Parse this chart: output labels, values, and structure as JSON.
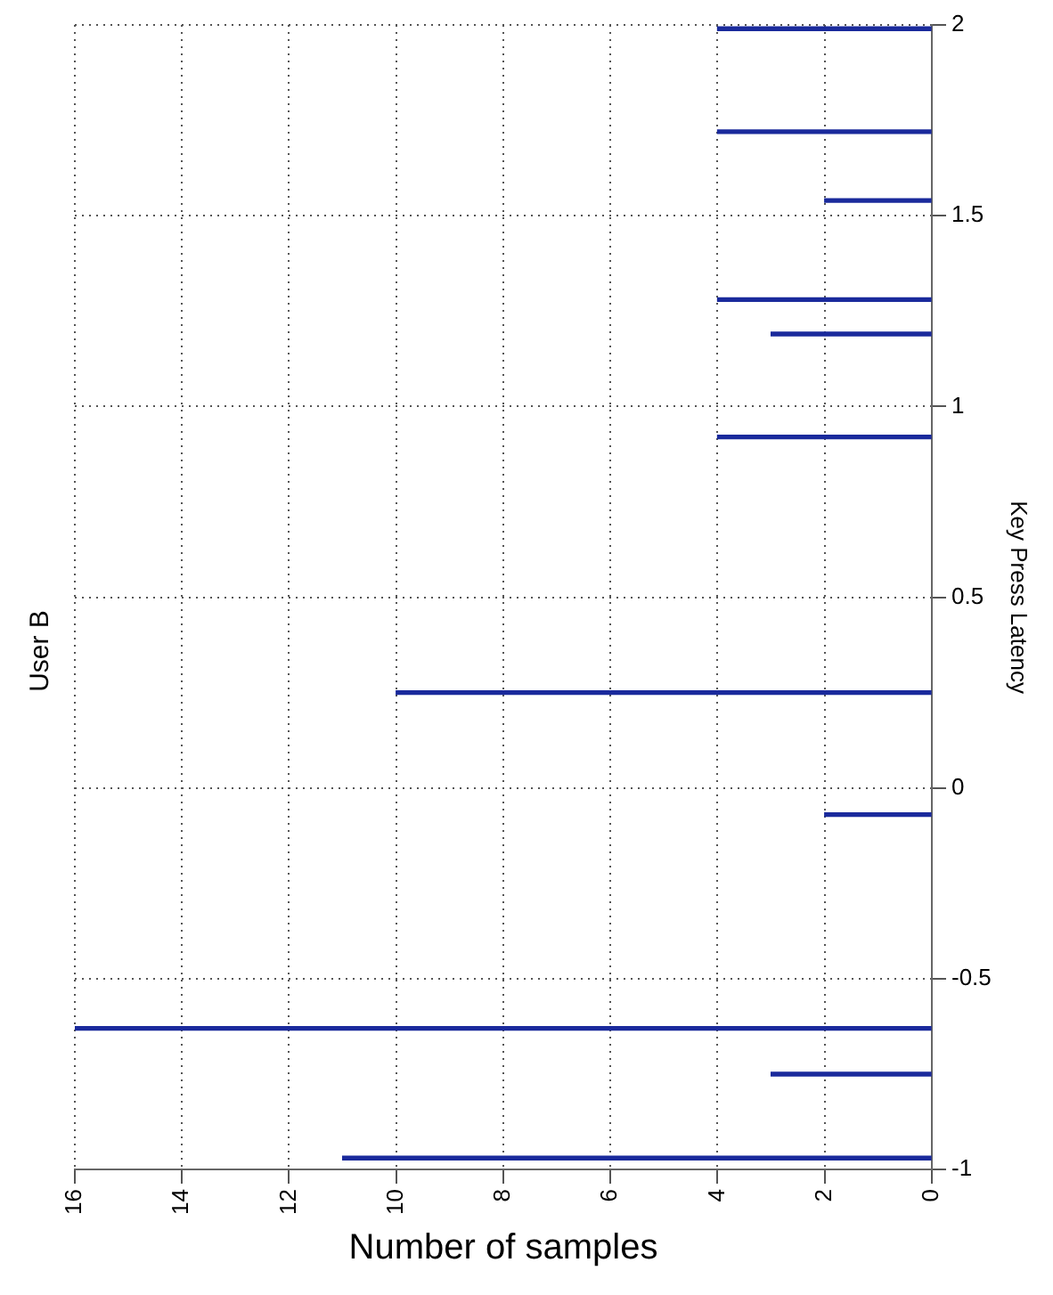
{
  "chart_data": {
    "type": "bar",
    "orientation": "horizontal",
    "title": "User B",
    "xlabel": "Number of samples",
    "ylabel": "Key Press Latency",
    "x": [
      1.99,
      1.72,
      1.54,
      1.28,
      1.19,
      0.92,
      0.25,
      -0.07,
      -0.63,
      -0.75,
      -0.97
    ],
    "values": [
      4,
      4,
      2,
      4,
      3,
      4,
      10,
      2,
      16,
      3,
      11
    ],
    "color": "#1a2a9c",
    "xlim": [
      16,
      0
    ],
    "xticks": [
      16,
      14,
      12,
      10,
      8,
      6,
      4,
      2,
      0
    ],
    "ylim": [
      -1,
      2
    ],
    "yticks": [
      -1,
      -0.5,
      0,
      0.5,
      1,
      1.5,
      2
    ],
    "grid": true,
    "legend": false
  }
}
